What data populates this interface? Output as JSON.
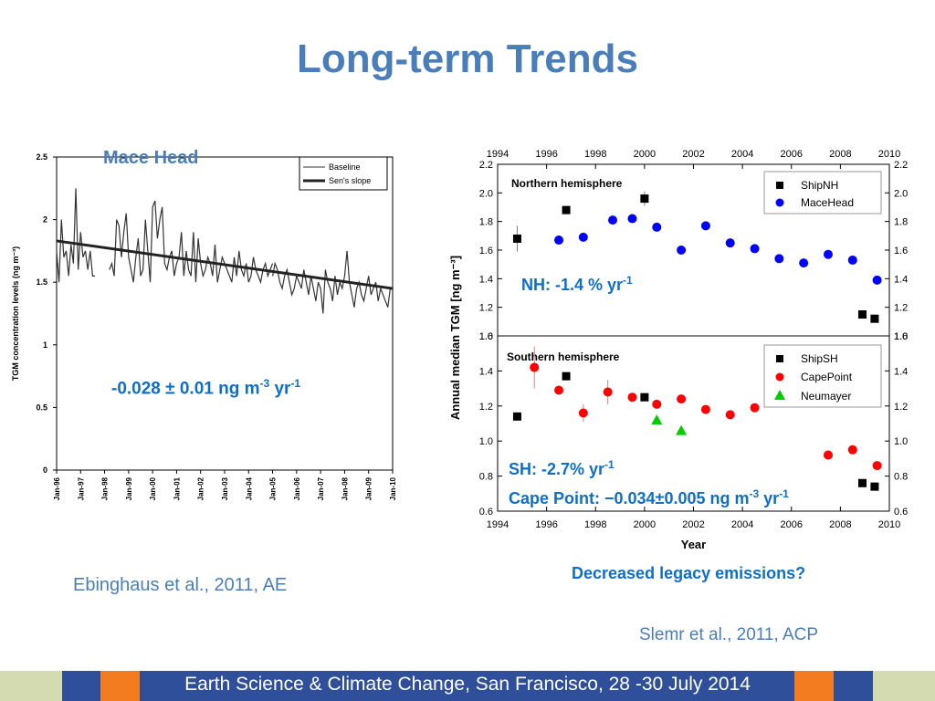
{
  "slide": {
    "title": "Long-term Trends",
    "left_plot_label": "Mace Head",
    "left_trend_value": "-0.028 ± 0.01 ng m",
    "left_trend_exp1": "-3",
    "left_trend_unit": " yr",
    "left_trend_exp2": "-1",
    "left_citation": "Ebinghaus et al., 2011, AE",
    "nh_text": "NH: -1.4 % yr",
    "nh_exp": "-1",
    "sh_text": "SH: -2.7% yr",
    "sh_exp": "-1",
    "cape_text": "Cape Point: −0.034±0.005 ng m",
    "cape_exp1": "-3",
    "cape_unit": " yr",
    "cape_exp2": "-1",
    "question": "Decreased legacy emissions?",
    "right_citation": "Slemr et al., 2011, ACP",
    "footer": "Earth Science & Climate Change, San Francisco, 28 -30 July 2014"
  },
  "colors": {
    "title": "#4a7ebb",
    "annotation": "#0f6fc6",
    "footer_green": "#d4dbb0",
    "footer_blue": "#2f4f9b",
    "footer_orange": "#f47c20",
    "nh_marker": "#0000ff",
    "sh_marker": "#ff0000",
    "neumayer_marker": "#00cc00"
  },
  "chart_data": [
    {
      "type": "line",
      "ylabel": "TGM concentration levels (ng m⁻³)",
      "xlabel": "",
      "x_ticks": [
        "Jan-96",
        "Jan-97",
        "Jan-98",
        "Jan-99",
        "Jan-00",
        "Jan-01",
        "Jan-02",
        "Jan-03",
        "Jan-04",
        "Jan-05",
        "Jan-06",
        "Jan-07",
        "Jan-08",
        "Jan-09",
        "Jan-10"
      ],
      "y_ticks": [
        "0",
        "0.5",
        "1",
        "1.5",
        "2",
        "2.5"
      ],
      "ylim": [
        0,
        2.5
      ],
      "legend": [
        "Baseline",
        "Sen's slope"
      ],
      "legend_position": "top-right",
      "series": [
        {
          "name": "Sen's slope",
          "x": [
            1996.0,
            2010.0
          ],
          "y": [
            1.83,
            1.45
          ]
        },
        {
          "name": "Baseline",
          "segments": [
            {
              "x": [
                1996.0,
                1996.1,
                1996.2,
                1996.3,
                1996.4,
                1996.5,
                1996.6,
                1996.7,
                1996.8,
                1996.9,
                1997.0,
                1997.1,
                1997.2,
                1997.3,
                1997.4,
                1997.5,
                1997.6
              ],
              "y": [
                1.75,
                1.5,
                2.0,
                1.7,
                1.75,
                1.55,
                1.8,
                1.65,
                2.25,
                1.6,
                1.9,
                1.7,
                1.75,
                1.6,
                1.75,
                1.55,
                1.55
              ]
            },
            {
              "x": [
                1998.2,
                1998.3,
                1998.4,
                1998.5,
                1998.6,
                1998.7,
                1998.8,
                1998.9,
                1999.0,
                1999.1,
                1999.2,
                1999.3,
                1999.4,
                1999.5,
                1999.6,
                1999.7,
                1999.8,
                1999.9,
                2000.0,
                2000.1,
                2000.2,
                2000.3,
                2000.4,
                2000.5,
                2000.6,
                2000.7,
                2000.8,
                2000.9,
                2001.0,
                2001.1,
                2001.2,
                2001.3,
                2001.4,
                2001.5,
                2001.6,
                2001.7,
                2001.8,
                2001.9,
                2002.0,
                2002.1,
                2002.2,
                2002.3,
                2002.4,
                2002.5,
                2002.6,
                2002.7,
                2002.8,
                2002.9,
                2003.0,
                2003.1,
                2003.2,
                2003.3,
                2003.4,
                2003.5,
                2003.6,
                2003.7,
                2003.8,
                2003.9,
                2004.0,
                2004.1,
                2004.2,
                2004.3,
                2004.4,
                2004.5,
                2004.6,
                2004.7,
                2004.8,
                2004.9,
                2005.0
              ],
              "y": [
                1.6,
                1.65,
                1.55,
                2.0,
                1.95,
                1.7,
                1.9,
                2.05,
                1.7,
                1.6,
                1.5,
                1.7,
                1.85,
                1.55,
                1.6,
                2.0,
                1.75,
                1.5,
                2.1,
                2.15,
                1.85,
                2.0,
                2.1,
                1.65,
                1.6,
                1.7,
                1.75,
                1.55,
                1.65,
                1.7,
                1.9,
                1.55,
                1.75,
                1.6,
                1.55,
                1.9,
                1.5,
                1.85,
                1.65,
                1.55,
                1.6,
                1.7,
                1.65,
                1.55,
                1.8,
                1.5,
                1.6,
                1.7,
                1.65,
                1.6,
                1.55,
                1.5,
                1.7,
                1.55,
                1.75,
                1.6,
                1.55,
                1.65,
                1.5,
                1.55,
                1.7,
                1.6,
                1.55,
                1.5,
                1.6,
                1.65,
                1.55,
                1.6,
                1.65
              ]
            },
            {
              "x": [
                2005.0,
                2005.1,
                2005.2,
                2005.3,
                2005.4,
                2005.5,
                2005.6,
                2005.7,
                2005.8,
                2005.9,
                2006.0,
                2006.1,
                2006.2,
                2006.3,
                2006.4,
                2006.5,
                2006.6,
                2006.7,
                2006.8,
                2006.9,
                2007.0,
                2007.1,
                2007.2,
                2007.3,
                2007.4,
                2007.5,
                2007.6,
                2007.7,
                2007.8,
                2007.9,
                2008.0,
                2008.1,
                2008.2,
                2008.3,
                2008.4,
                2008.5,
                2008.6,
                2008.7,
                2008.8,
                2008.9,
                2009.0,
                2009.1,
                2009.2,
                2009.3,
                2009.4,
                2009.5,
                2009.6,
                2009.7,
                2009.8,
                2009.9
              ],
              "y": [
                1.55,
                1.65,
                1.6,
                1.5,
                1.45,
                1.55,
                1.6,
                1.5,
                1.4,
                1.45,
                1.55,
                1.5,
                1.45,
                1.6,
                1.5,
                1.4,
                1.55,
                1.45,
                1.35,
                1.5,
                1.45,
                1.25,
                1.6,
                1.5,
                1.45,
                1.35,
                1.55,
                1.4,
                1.5,
                1.45,
                1.55,
                1.75,
                1.5,
                1.4,
                1.3,
                1.45,
                1.5,
                1.4,
                1.35,
                1.45,
                1.55,
                1.4,
                1.45,
                1.5,
                1.35,
                1.45,
                1.4,
                1.35,
                1.3,
                1.45
              ]
            }
          ]
        }
      ]
    },
    {
      "type": "scatter",
      "panel": "Northern hemisphere",
      "ylabel": "Annual median TGM [ng m⁻³]",
      "x_ticks": [
        "1994",
        "1996",
        "1998",
        "2000",
        "2002",
        "2004",
        "2006",
        "2008",
        "2010"
      ],
      "y_ticks": [
        "1.0",
        "1.2",
        "1.4",
        "1.6",
        "1.8",
        "2.0",
        "2.2"
      ],
      "xlim": [
        1994,
        2010
      ],
      "ylim": [
        1.0,
        2.2
      ],
      "legend_position": "top-right",
      "series": [
        {
          "name": "ShipNH",
          "x": [
            1994.8,
            1996.8,
            2000.0,
            2008.9,
            2009.4
          ],
          "y": [
            1.68,
            1.88,
            1.96,
            1.15,
            1.12
          ]
        },
        {
          "name": "MaceHead",
          "x": [
            1996.5,
            1997.5,
            1998.7,
            1999.5,
            2000.5,
            2001.5,
            2002.5,
            2003.5,
            2004.5,
            2005.5,
            2006.5,
            2007.5,
            2008.5,
            2009.5
          ],
          "y": [
            1.67,
            1.69,
            1.81,
            1.82,
            1.76,
            1.6,
            1.77,
            1.65,
            1.61,
            1.54,
            1.51,
            1.57,
            1.53,
            1.39
          ]
        }
      ]
    },
    {
      "type": "scatter",
      "panel": "Southern hemisphere",
      "xlabel": "Year",
      "x_ticks": [
        "1994",
        "1996",
        "1998",
        "2000",
        "2002",
        "2004",
        "2006",
        "2008",
        "2010"
      ],
      "y_ticks": [
        "0.6",
        "0.8",
        "1.0",
        "1.2",
        "1.4",
        "1.6"
      ],
      "xlim": [
        1994,
        2010
      ],
      "ylim": [
        0.6,
        1.6
      ],
      "legend_position": "top-right",
      "series": [
        {
          "name": "ShipSH",
          "x": [
            1994.8,
            1996.8,
            2000.0,
            2008.9,
            2009.4
          ],
          "y": [
            1.14,
            1.37,
            1.25,
            0.76,
            0.74
          ]
        },
        {
          "name": "CapePoint",
          "x": [
            1995.5,
            1996.5,
            1997.5,
            1998.5,
            1999.5,
            2000.5,
            2001.5,
            2002.5,
            2003.5,
            2004.5,
            2007.5,
            2008.5,
            2009.5
          ],
          "y": [
            1.42,
            1.29,
            1.16,
            1.28,
            1.25,
            1.21,
            1.24,
            1.18,
            1.15,
            1.19,
            0.92,
            0.95,
            0.86
          ]
        },
        {
          "name": "Neumayer",
          "x": [
            2000.5,
            2001.5
          ],
          "y": [
            1.12,
            1.06
          ]
        }
      ]
    }
  ]
}
